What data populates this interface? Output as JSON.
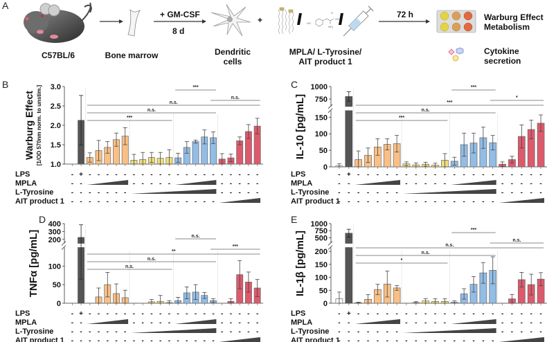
{
  "panel_a": {
    "letter": "A",
    "steps": {
      "mouse": "C57BL/6",
      "bone": "Bone marrow",
      "dc_line1": "Dendritic",
      "dc_line2": "cells",
      "treat_line1": "MPLA/ L-Tyrosine/",
      "treat_line2": "AIT product 1",
      "warburg_line1": "Warburg Effect",
      "warburg_line2": "Metabolism",
      "cyto_line1": "Cytokine",
      "cyto_line2": "secretion"
    },
    "arrow_gmcsf": "+ GM-CSF",
    "arrow_days": "8 d",
    "arrow_72h": "72 h",
    "plus": "+",
    "slash": "/"
  },
  "colors": {
    "unstim": "#ffffff",
    "lps": "#555555",
    "mpla": "#f9c086",
    "tyrosine": "#f0df7a",
    "combo": "#92bde6",
    "ait": "#dd5a6c"
  },
  "treatment_rows": [
    "LPS",
    "MPLA",
    "L-Tyrosine",
    "AIT product 1"
  ],
  "chart_data": [
    {
      "panel": "B",
      "type": "bar",
      "ylabel": "Warburg Effect",
      "ylabel2": "[1/OD 570nm norm. to unstim.]",
      "ylim": [
        1.0,
        3.0
      ],
      "ticks": [
        "1.0",
        "1.5",
        "2.0",
        "2.5",
        "3.0"
      ],
      "tick_values": [
        1.0,
        1.5,
        2.0,
        2.5,
        3.0
      ],
      "broken": false,
      "groups": [
        "unstim",
        "lps",
        "mpla",
        "mpla",
        "mpla",
        "mpla",
        "mpla",
        "tyrosine",
        "tyrosine",
        "tyrosine",
        "tyrosine",
        "tyrosine",
        "combo",
        "combo",
        "combo",
        "combo",
        "combo",
        "ait",
        "ait",
        "ait",
        "ait",
        "ait"
      ],
      "values": [
        1.0,
        2.13,
        1.17,
        1.35,
        1.43,
        1.63,
        1.72,
        1.1,
        1.12,
        1.17,
        1.15,
        1.17,
        1.16,
        1.43,
        1.58,
        1.7,
        1.68,
        1.13,
        1.16,
        1.6,
        1.84,
        1.98
      ],
      "errors": [
        0.0,
        0.64,
        0.12,
        0.26,
        0.15,
        0.17,
        0.22,
        0.15,
        0.18,
        0.13,
        0.15,
        0.2,
        0.12,
        0.15,
        0.04,
        0.18,
        0.15,
        0.14,
        0.1,
        0.1,
        0.18,
        0.2
      ],
      "significance": [
        {
          "label": "***",
          "from": 12,
          "to": 16,
          "level": 4
        },
        {
          "label": "n.s.",
          "from": 16,
          "to": 21,
          "level": 3
        },
        {
          "label": "n.s.",
          "from": 2,
          "to": 21,
          "level": 2
        },
        {
          "label": "n.s.",
          "from": 2,
          "to": 16,
          "level": 1
        },
        {
          "label": "***",
          "from": 2,
          "to": 11,
          "level": 0
        }
      ]
    },
    {
      "panel": "C",
      "type": "bar",
      "ylabel": "IL-10 [pg/mL]",
      "ylim_low": [
        0,
        170
      ],
      "ylim_high": [
        600,
        1000
      ],
      "ticks": [
        "0",
        "50",
        "100",
        "150",
        "750",
        "1000"
      ],
      "tick_values": [
        0,
        50,
        100,
        150,
        750,
        1000
      ],
      "broken": true,
      "groups": [
        "unstim",
        "lps",
        "mpla",
        "mpla",
        "mpla",
        "mpla",
        "mpla",
        "tyrosine",
        "tyrosine",
        "tyrosine",
        "tyrosine",
        "tyrosine",
        "combo",
        "combo",
        "combo",
        "combo",
        "combo",
        "ait",
        "ait",
        "ait",
        "ait",
        "ait"
      ],
      "values": [
        3,
        800,
        22,
        35,
        60,
        68,
        70,
        9,
        6,
        8,
        5,
        20,
        17,
        67,
        72,
        88,
        73,
        8,
        22,
        92,
        113,
        132
      ],
      "errors": [
        6,
        95,
        26,
        22,
        25,
        17,
        25,
        6,
        6,
        6,
        6,
        20,
        12,
        35,
        30,
        32,
        22,
        7,
        10,
        35,
        28,
        25
      ],
      "significance": [
        {
          "label": "***",
          "from": 12,
          "to": 16,
          "level": 4
        },
        {
          "label": "*",
          "from": 16,
          "to": 21,
          "level": 3
        },
        {
          "label": "***",
          "from": 2,
          "to": 21,
          "level": 2
        },
        {
          "label": "n.s.",
          "from": 2,
          "to": 16,
          "level": 1
        },
        {
          "label": "***",
          "from": 2,
          "to": 11,
          "level": 0
        }
      ]
    },
    {
      "panel": "D",
      "type": "bar",
      "ylabel": "TNFα [pg/mL]",
      "ylim_low": [
        0,
        150
      ],
      "ylim_high": [
        150,
        400
      ],
      "ticks": [
        "0",
        "50",
        "100",
        "200",
        "300",
        "400"
      ],
      "tick_values": [
        0,
        50,
        100,
        200,
        300,
        400
      ],
      "broken": true,
      "groups": [
        "unstim",
        "lps",
        "mpla",
        "mpla",
        "mpla",
        "mpla",
        "mpla",
        "tyrosine",
        "tyrosine",
        "tyrosine",
        "tyrosine",
        "tyrosine",
        "combo",
        "combo",
        "combo",
        "combo",
        "combo",
        "ait",
        "ait",
        "ait",
        "ait",
        "ait"
      ],
      "values": [
        0,
        225,
        0,
        17,
        50,
        26,
        15,
        0,
        0,
        4,
        5,
        2,
        7,
        28,
        30,
        21,
        7,
        0,
        5,
        77,
        57,
        41
      ],
      "errors": [
        0,
        160,
        0,
        24,
        33,
        26,
        20,
        0,
        0,
        6,
        16,
        5,
        9,
        16,
        20,
        8,
        5,
        0,
        7,
        38,
        27,
        23
      ],
      "significance": [
        {
          "label": "n.s.",
          "from": 12,
          "to": 16,
          "level": 4
        },
        {
          "label": "***",
          "from": 16,
          "to": 21,
          "level": 3
        },
        {
          "label": "**",
          "from": 2,
          "to": 21,
          "level": 2
        },
        {
          "label": "n.s.",
          "from": 2,
          "to": 16,
          "level": 1
        },
        {
          "label": "n.s.",
          "from": 2,
          "to": 11,
          "level": 0
        }
      ]
    },
    {
      "panel": "E",
      "type": "bar",
      "ylabel": "IL-1β [pg/mL]",
      "ylim_low": [
        0,
        215
      ],
      "ylim_high": [
        300,
        1000
      ],
      "ticks": [
        "0",
        "50",
        "100",
        "150",
        "200",
        "500",
        "750",
        "1000"
      ],
      "tick_values": [
        0,
        50,
        100,
        150,
        200,
        500,
        750,
        1000
      ],
      "broken": true,
      "groups": [
        "unstim",
        "lps",
        "mpla",
        "mpla",
        "mpla",
        "mpla",
        "mpla",
        "tyrosine",
        "tyrosine",
        "tyrosine",
        "tyrosine",
        "tyrosine",
        "combo",
        "combo",
        "combo",
        "combo",
        "combo",
        "ait",
        "ait",
        "ait",
        "ait",
        "ait"
      ],
      "values": [
        17,
        660,
        2,
        15,
        53,
        74,
        59,
        0,
        3,
        9,
        7,
        7,
        4,
        36,
        73,
        117,
        127,
        0,
        17,
        91,
        72,
        93
      ],
      "errors": [
        26,
        140,
        2,
        18,
        20,
        50,
        9,
        0,
        3,
        9,
        10,
        10,
        5,
        20,
        30,
        40,
        52,
        0,
        17,
        28,
        40,
        25
      ],
      "significance": [
        {
          "label": "***",
          "from": 12,
          "to": 16,
          "level": 4
        },
        {
          "label": "n.s.",
          "from": 16,
          "to": 21,
          "level": 3
        },
        {
          "label": "n.s.",
          "from": 2,
          "to": 21,
          "level": 2
        },
        {
          "label": "n.s.",
          "from": 2,
          "to": 16,
          "level": 1
        },
        {
          "label": "*",
          "from": 2,
          "to": 11,
          "level": 0
        }
      ]
    }
  ],
  "treatment_table": {
    "LPS": [
      "-",
      "+",
      "-",
      "-",
      "-",
      "-",
      "-",
      "-",
      "-",
      "-",
      "-",
      "-",
      "-",
      "-",
      "-",
      "-",
      "-",
      "-",
      "-",
      "-",
      "-",
      "-"
    ],
    "MPLA": [
      "-",
      "-",
      "ramp",
      "ramp",
      "ramp",
      "ramp",
      "ramp",
      "-",
      "-",
      "-",
      "-",
      "-",
      "ramp",
      "ramp",
      "ramp",
      "ramp",
      "ramp",
      "-",
      "-",
      "-",
      "-",
      "-"
    ],
    "L-Tyrosine": [
      "-",
      "-",
      "-",
      "-",
      "-",
      "-",
      "-",
      "ramp",
      "ramp",
      "ramp",
      "ramp",
      "ramp",
      "ramp",
      "ramp",
      "ramp",
      "ramp",
      "ramp",
      "-",
      "-",
      "-",
      "-",
      "-"
    ],
    "AIT product 1": [
      "-",
      "-",
      "-",
      "-",
      "-",
      "-",
      "-",
      "-",
      "-",
      "-",
      "-",
      "-",
      "-",
      "-",
      "-",
      "-",
      "-",
      "ramp",
      "ramp",
      "ramp",
      "ramp",
      "ramp"
    ]
  }
}
